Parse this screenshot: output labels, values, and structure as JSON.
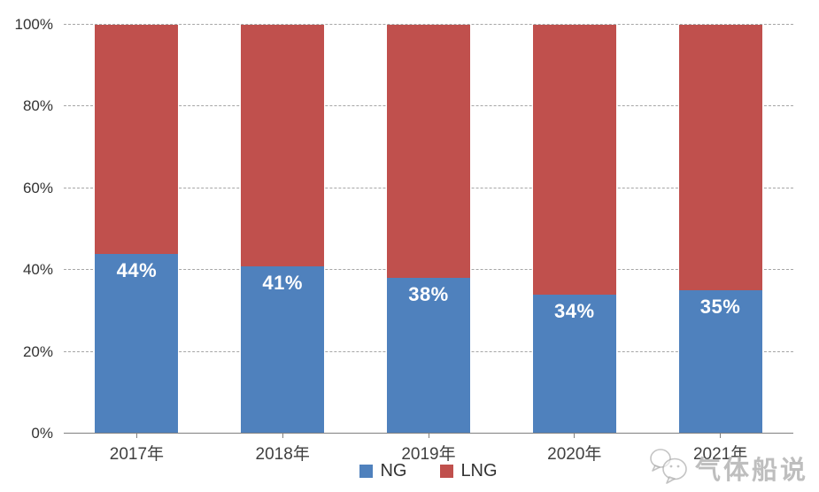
{
  "chart_data": {
    "type": "bar",
    "stacked": true,
    "percent_stacked": true,
    "categories": [
      "2017年",
      "2018年",
      "2019年",
      "2020年",
      "2021年"
    ],
    "series": [
      {
        "name": "NG",
        "color": "#4F81BD",
        "values": [
          44,
          41,
          38,
          34,
          35
        ],
        "data_labels": [
          "44%",
          "41%",
          "38%",
          "34%",
          "35%"
        ]
      },
      {
        "name": "LNG",
        "color": "#C0504D",
        "values": [
          56,
          59,
          62,
          66,
          65
        ],
        "data_labels": []
      }
    ],
    "xlabel": "",
    "ylabel": "",
    "y_axis": {
      "min": 0,
      "max": 100,
      "ticks": [
        "0%",
        "20%",
        "40%",
        "60%",
        "80%",
        "100%"
      ]
    },
    "grid": {
      "horizontal": "dashed",
      "color": "#A6A6A6"
    },
    "legend": {
      "position": "bottom",
      "entries": [
        "NG",
        "LNG"
      ]
    }
  },
  "watermark": {
    "text": "气体船说",
    "logo": "chat-bubbles-mascot-icon"
  },
  "colors": {
    "background": "#FFFFFF",
    "axis_line": "#7F7F7F",
    "tick_label": "#404040",
    "bar_label": "#FFFFFF"
  }
}
